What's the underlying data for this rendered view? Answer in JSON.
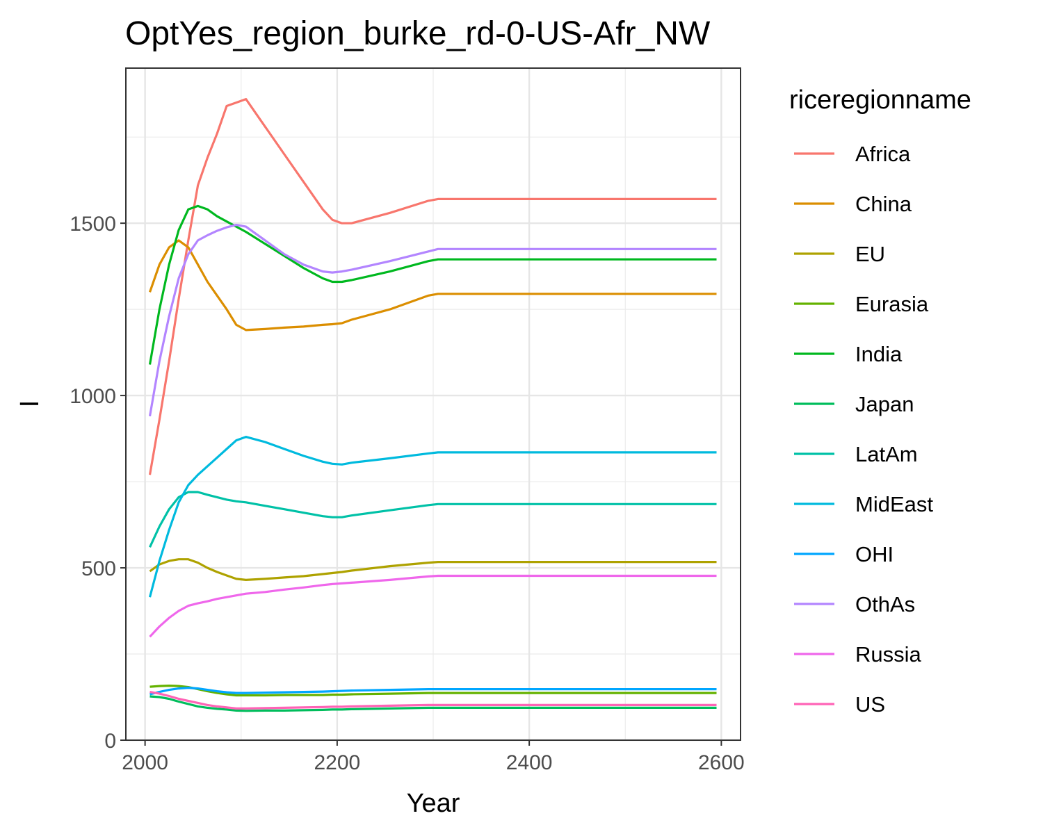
{
  "chart_data": {
    "type": "line",
    "title": "OptYes_region_burke_rd-0-US-Afr_NW",
    "xlabel": "Year",
    "ylabel": "I",
    "xlim": [
      1980,
      2620
    ],
    "ylim": [
      0,
      1950
    ],
    "x_ticks": [
      2000,
      2200,
      2400,
      2600
    ],
    "x_tick_labels": [
      "2000",
      "2200",
      "2400",
      "2600"
    ],
    "y_ticks": [
      0,
      500,
      1000,
      1500
    ],
    "y_tick_labels": [
      "0",
      "500",
      "1000",
      "1500"
    ],
    "grid": true,
    "legend_title": "riceregionname",
    "legend_position": "right",
    "series": [
      {
        "name": "Africa",
        "color": "#F8766D",
        "x": [
          2005,
          2015,
          2025,
          2035,
          2045,
          2055,
          2065,
          2075,
          2085,
          2095,
          2105,
          2125,
          2145,
          2165,
          2185,
          2195,
          2205,
          2215,
          2255,
          2295,
          2305,
          2595
        ],
        "y": [
          770,
          930,
          1100,
          1280,
          1450,
          1610,
          1690,
          1760,
          1840,
          1850,
          1860,
          1780,
          1700,
          1620,
          1540,
          1510,
          1500,
          1500,
          1530,
          1565,
          1570,
          1570
        ]
      },
      {
        "name": "China",
        "color": "#DB8E00",
        "x": [
          2005,
          2015,
          2025,
          2035,
          2045,
          2055,
          2065,
          2075,
          2085,
          2095,
          2105,
          2125,
          2145,
          2165,
          2185,
          2195,
          2205,
          2215,
          2255,
          2295,
          2305,
          2595
        ],
        "y": [
          1300,
          1380,
          1430,
          1450,
          1430,
          1380,
          1330,
          1290,
          1250,
          1205,
          1190,
          1193,
          1197,
          1200,
          1205,
          1207,
          1210,
          1220,
          1250,
          1290,
          1295,
          1295
        ]
      },
      {
        "name": "EU",
        "color": "#AEA200",
        "x": [
          2005,
          2015,
          2025,
          2035,
          2045,
          2055,
          2065,
          2075,
          2085,
          2095,
          2105,
          2125,
          2145,
          2165,
          2185,
          2195,
          2205,
          2215,
          2255,
          2295,
          2305,
          2595
        ],
        "y": [
          490,
          510,
          520,
          525,
          525,
          515,
          500,
          488,
          478,
          468,
          465,
          468,
          472,
          476,
          482,
          485,
          488,
          492,
          505,
          515,
          517,
          517
        ]
      },
      {
        "name": "Eurasia",
        "color": "#64B200",
        "x": [
          2005,
          2015,
          2025,
          2035,
          2045,
          2055,
          2065,
          2075,
          2085,
          2095,
          2105,
          2125,
          2145,
          2165,
          2185,
          2195,
          2205,
          2215,
          2255,
          2295,
          2305,
          2595
        ],
        "y": [
          155,
          157,
          158,
          157,
          154,
          148,
          142,
          137,
          133,
          130,
          130,
          130,
          131,
          131,
          131,
          132,
          132,
          133,
          135,
          137,
          137,
          137
        ]
      },
      {
        "name": "India",
        "color": "#00B81F",
        "x": [
          2005,
          2015,
          2025,
          2035,
          2045,
          2055,
          2065,
          2075,
          2085,
          2095,
          2105,
          2125,
          2145,
          2165,
          2185,
          2195,
          2205,
          2215,
          2255,
          2295,
          2305,
          2595
        ],
        "y": [
          1090,
          1250,
          1380,
          1480,
          1540,
          1550,
          1540,
          1520,
          1505,
          1490,
          1475,
          1440,
          1405,
          1370,
          1340,
          1330,
          1330,
          1335,
          1360,
          1390,
          1395,
          1395
        ]
      },
      {
        "name": "Japan",
        "color": "#00BD5C",
        "x": [
          2005,
          2015,
          2025,
          2035,
          2045,
          2055,
          2065,
          2075,
          2085,
          2095,
          2105,
          2125,
          2145,
          2165,
          2185,
          2195,
          2205,
          2215,
          2255,
          2295,
          2305,
          2595
        ],
        "y": [
          127,
          125,
          120,
          112,
          105,
          98,
          94,
          91,
          89,
          86,
          85,
          86,
          86,
          87,
          88,
          89,
          89,
          90,
          92,
          94,
          94,
          94
        ]
      },
      {
        "name": "LatAm",
        "color": "#00C1A7",
        "x": [
          2005,
          2015,
          2025,
          2035,
          2045,
          2055,
          2065,
          2075,
          2085,
          2095,
          2105,
          2125,
          2145,
          2165,
          2185,
          2195,
          2205,
          2215,
          2255,
          2295,
          2305,
          2595
        ],
        "y": [
          560,
          620,
          670,
          705,
          720,
          720,
          712,
          705,
          698,
          693,
          690,
          680,
          670,
          660,
          650,
          647,
          647,
          652,
          667,
          682,
          685,
          685
        ]
      },
      {
        "name": "MidEast",
        "color": "#00BADE",
        "x": [
          2005,
          2015,
          2025,
          2035,
          2045,
          2055,
          2065,
          2075,
          2085,
          2095,
          2105,
          2125,
          2145,
          2165,
          2185,
          2195,
          2205,
          2215,
          2255,
          2295,
          2305,
          2595
        ],
        "y": [
          415,
          520,
          610,
          690,
          740,
          770,
          795,
          820,
          845,
          870,
          880,
          865,
          845,
          825,
          808,
          802,
          800,
          805,
          818,
          832,
          835,
          835
        ]
      },
      {
        "name": "OHI",
        "color": "#00A6FF",
        "x": [
          2005,
          2015,
          2025,
          2035,
          2045,
          2055,
          2065,
          2075,
          2085,
          2095,
          2105,
          2125,
          2145,
          2165,
          2185,
          2195,
          2205,
          2215,
          2255,
          2295,
          2305,
          2595
        ],
        "y": [
          133,
          140,
          146,
          150,
          152,
          150,
          146,
          142,
          139,
          137,
          137,
          138,
          139,
          140,
          141,
          142,
          143,
          144,
          146,
          148,
          148,
          148
        ]
      },
      {
        "name": "OthAs",
        "color": "#B385FF",
        "x": [
          2005,
          2015,
          2025,
          2035,
          2045,
          2055,
          2065,
          2075,
          2085,
          2095,
          2105,
          2125,
          2145,
          2165,
          2185,
          2195,
          2205,
          2215,
          2255,
          2295,
          2305,
          2595
        ],
        "y": [
          940,
          1100,
          1230,
          1340,
          1410,
          1450,
          1465,
          1478,
          1488,
          1495,
          1490,
          1450,
          1410,
          1380,
          1360,
          1357,
          1360,
          1365,
          1390,
          1418,
          1425,
          1425
        ]
      },
      {
        "name": "Russia",
        "color": "#EF67EB",
        "x": [
          2005,
          2015,
          2025,
          2035,
          2045,
          2055,
          2065,
          2075,
          2085,
          2095,
          2105,
          2125,
          2145,
          2165,
          2185,
          2195,
          2205,
          2215,
          2255,
          2295,
          2305,
          2595
        ],
        "y": [
          300,
          330,
          355,
          375,
          390,
          397,
          403,
          410,
          415,
          420,
          425,
          430,
          437,
          443,
          450,
          453,
          455,
          457,
          465,
          475,
          477,
          477
        ]
      },
      {
        "name": "US",
        "color": "#FF63B6",
        "x": [
          2005,
          2015,
          2025,
          2035,
          2045,
          2055,
          2065,
          2075,
          2085,
          2095,
          2105,
          2125,
          2145,
          2165,
          2185,
          2195,
          2205,
          2215,
          2255,
          2295,
          2305,
          2595
        ],
        "y": [
          140,
          135,
          128,
          120,
          114,
          108,
          102,
          98,
          95,
          92,
          92,
          93,
          94,
          95,
          96,
          97,
          97,
          98,
          100,
          102,
          102,
          102
        ]
      }
    ]
  }
}
